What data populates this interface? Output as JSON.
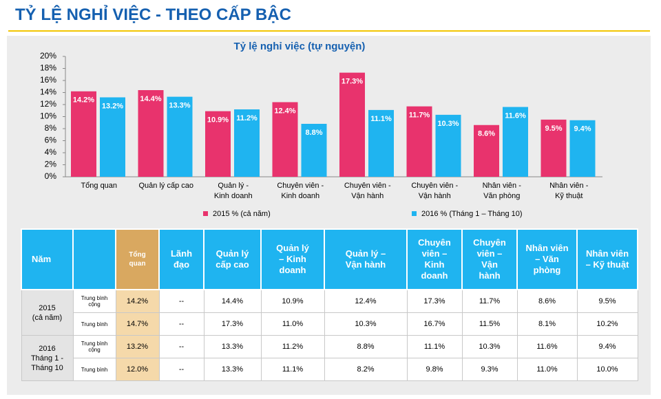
{
  "title": "TỶ LỆ NGHỈ VIỆC - THEO CẤP BẬC",
  "chart_data": {
    "type": "bar",
    "title": "Tỷ lệ nghỉ việc (tự nguyện)",
    "categories": [
      "Tổng quan",
      "Quản lý cấp cao",
      "Quản lý -\nKinh doanh",
      "Chuyên viên -\nKinh doanh",
      "Chuyên viên -\nVận hành",
      "Chuyên viên -\nVận hành",
      "Nhân viên -\nVăn phòng",
      "Nhân viên -\nKỹ thuật"
    ],
    "series": [
      {
        "name": "2015 % (cả năm)",
        "color": "#e8336d",
        "values": [
          14.2,
          14.4,
          10.9,
          12.4,
          17.3,
          11.7,
          8.6,
          9.5
        ],
        "value_labels": [
          "14.2%",
          "14.4%",
          "10.9%",
          "12.4%",
          "17.3%",
          "11.7%",
          "8.6%",
          "9.5%"
        ]
      },
      {
        "name": "2016 % (Tháng 1 – Tháng 10)",
        "color": "#1fb4f0",
        "values": [
          13.2,
          13.3,
          11.2,
          8.8,
          11.1,
          10.3,
          11.6,
          9.4
        ],
        "value_labels": [
          "13.2%",
          "13.3%",
          "11.2%",
          "8.8%",
          "11.1%",
          "10.3%",
          "11.6%",
          "9.4%"
        ]
      }
    ],
    "ylim": [
      0,
      20
    ],
    "yticks": [
      {
        "value": 0,
        "label": "0%"
      },
      {
        "value": 2,
        "label": "2%"
      },
      {
        "value": 4,
        "label": "4%"
      },
      {
        "value": 6,
        "label": "6%"
      },
      {
        "value": 8,
        "label": "8%"
      },
      {
        "value": 10,
        "label": "10%"
      },
      {
        "value": 12,
        "label": "12%"
      },
      {
        "value": 14,
        "label": "14%"
      },
      {
        "value": 16,
        "label": "16%"
      },
      {
        "value": 18,
        "label": "18%"
      },
      {
        "value": 20,
        "label": "20%"
      }
    ],
    "legend": "bottom"
  },
  "table": {
    "header": [
      "Năm",
      "Tổng\nquan",
      "Lãnh\nđạo",
      "Quản lý\ncấp cao",
      "Quản lý\n– Kinh\ndoanh",
      "Quản lý –\nVận hành",
      "Chuyên\nviên –\nKinh\ndoanh",
      "Chuyên\nviên –\nVận\nhành",
      "Nhân viên\n– Văn\nphòng",
      "Nhân viên\n– Kỹ thuật"
    ],
    "groups": [
      {
        "label": "2015\n(cả năm)",
        "rows": [
          {
            "label": "Trung bình\ncộng",
            "cells": [
              "14.2%",
              "--",
              "14.4%",
              "10.9%",
              "12.4%",
              "17.3%",
              "11.7%",
              "8.6%",
              "9.5%"
            ]
          },
          {
            "label": "Trung bình",
            "cells": [
              "14.7%",
              "--",
              "17.3%",
              "11.0%",
              "10.3%",
              "16.7%",
              "11.5%",
              "8.1%",
              "10.2%"
            ]
          }
        ]
      },
      {
        "label": "2016\nTháng 1 -\nTháng 10",
        "rows": [
          {
            "label": "Trung bình\ncộng",
            "cells": [
              "13.2%",
              "--",
              "13.3%",
              "11.2%",
              "8.8%",
              "11.1%",
              "10.3%",
              "11.6%",
              "9.4%"
            ]
          },
          {
            "label": "Trung bình",
            "cells": [
              "12.0%",
              "--",
              "13.3%",
              "11.1%",
              "8.2%",
              "9.8%",
              "9.3%",
              "11.0%",
              "10.0%"
            ]
          }
        ]
      }
    ]
  }
}
